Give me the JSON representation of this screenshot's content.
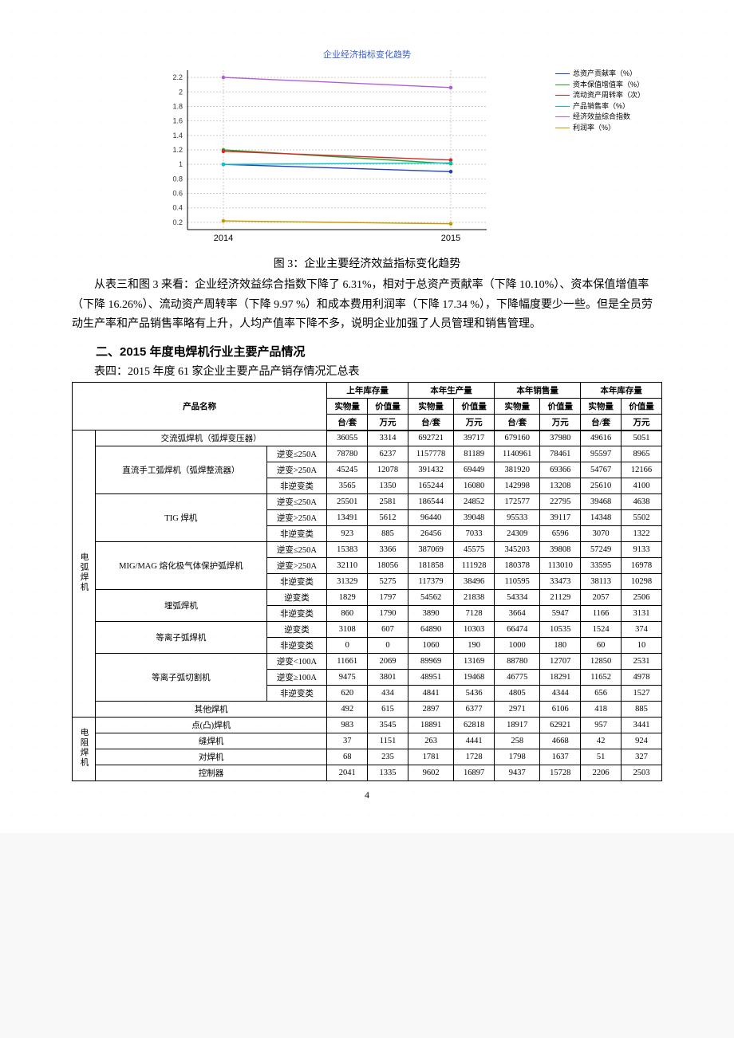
{
  "chart": {
    "title": "企业经济指标变化趋势",
    "title_color": "#3a5fcd",
    "title_fontsize": 11,
    "x_labels": [
      "2014",
      "2015"
    ],
    "y_ticks": [
      0.2,
      0.4,
      0.6,
      0.8,
      1,
      1.2,
      1.4,
      1.6,
      1.8,
      2,
      2.2
    ],
    "ylim": [
      0.1,
      2.3
    ],
    "grid_color": "#d6c9c0",
    "grid_dash": "2,2",
    "axis_color": "#000000",
    "background": "#ffffff",
    "series": [
      {
        "label": "总资产贡献率（%）",
        "color": "#1f3fbf",
        "values": [
          1.0,
          0.9
        ]
      },
      {
        "label": "资本保值增值率（%）",
        "color": "#2aa02a",
        "values": [
          1.2,
          1.01
        ]
      },
      {
        "label": "流动资产周转率（次）",
        "color": "#d62728",
        "values": [
          1.18,
          1.06
        ]
      },
      {
        "label": "产品销售率（%）",
        "color": "#00c6c6",
        "values": [
          1.0,
          1.02
        ]
      },
      {
        "label": "经济效益综合指数",
        "color": "#b060d6",
        "values": [
          2.2,
          2.06
        ]
      },
      {
        "label": "利润率（%）",
        "color": "#c49a00",
        "values": [
          0.22,
          0.18
        ]
      }
    ],
    "legend_fontsize": 9
  },
  "caption": "图 3：企业主要经济效益指标变化趋势",
  "paragraph": "从表三和图 3 来看：企业经济效益综合指数下降了 6.31%，相对于总资产贡献率（下降 10.10%）、资本保值增值率（下降 16.26%）、流动资产周转率（下降 9.97 %）和成本费用利润率（下降 17.34 %），下降幅度要少一些。但是全员劳动生产率和产品销售率略有上升，人均产值率下降不多，说明企业加强了人员管理和销售管理。",
  "section_heading": "二、2015 年度电焊机行业主要产品情况",
  "table_caption": "表四：2015 年度 61 家企业主要产品产销存情况汇总表",
  "table": {
    "group_headers": [
      "上年库存量",
      "本年生产量",
      "本年销售量",
      "本年库存量"
    ],
    "sub_headers": [
      "实物量",
      "价值量"
    ],
    "unit_headers": [
      "台/套",
      "万元"
    ],
    "product_header": "产品名称",
    "main_groups": [
      {
        "label": "电弧焊机",
        "rowspan": 17
      },
      {
        "label": "电阻焊机",
        "rowspan": 4
      }
    ],
    "rows": [
      {
        "g": 0,
        "name": [
          "交流弧焊机（弧焊变压器）"
        ],
        "colspan": 2,
        "d": [
          36055,
          3314,
          692721,
          39717,
          679160,
          37980,
          49616,
          5051
        ]
      },
      {
        "g": 0,
        "name": [
          "直流手工弧焊机（弧焊整流器）",
          "逆变≤250A"
        ],
        "rowspan": 3,
        "d": [
          78780,
          6237,
          1157778,
          81189,
          1140961,
          78461,
          95597,
          8965
        ]
      },
      {
        "g": 0,
        "name": [
          null,
          "逆变>250A"
        ],
        "d": [
          45245,
          12078,
          391432,
          69449,
          381920,
          69366,
          54767,
          12166
        ]
      },
      {
        "g": 0,
        "name": [
          null,
          "非逆变类"
        ],
        "d": [
          3565,
          1350,
          165244,
          16080,
          142998,
          13208,
          25610,
          4100
        ]
      },
      {
        "g": 0,
        "name": [
          "TIG 焊机",
          "逆变≤250A"
        ],
        "rowspan": 3,
        "d": [
          25501,
          2581,
          186544,
          24852,
          172577,
          22795,
          39468,
          4638
        ]
      },
      {
        "g": 0,
        "name": [
          null,
          "逆变>250A"
        ],
        "d": [
          13491,
          5612,
          96440,
          39048,
          95533,
          39117,
          14348,
          5502
        ]
      },
      {
        "g": 0,
        "name": [
          null,
          "非逆变类"
        ],
        "d": [
          923,
          885,
          26456,
          7033,
          24309,
          6596,
          3070,
          1322
        ]
      },
      {
        "g": 0,
        "name": [
          "MIG/MAG 熔化极气体保护弧焊机",
          "逆变≤250A"
        ],
        "rowspan": 3,
        "d": [
          15383,
          3366,
          387069,
          45575,
          345203,
          39808,
          57249,
          9133
        ]
      },
      {
        "g": 0,
        "name": [
          null,
          "逆变>250A"
        ],
        "d": [
          32110,
          18056,
          181858,
          111928,
          180378,
          113010,
          33595,
          16978
        ]
      },
      {
        "g": 0,
        "name": [
          null,
          "非逆变类"
        ],
        "d": [
          31329,
          5275,
          117379,
          38496,
          110595,
          33473,
          38113,
          10298
        ]
      },
      {
        "g": 0,
        "name": [
          "埋弧焊机",
          "逆变类"
        ],
        "rowspan": 2,
        "d": [
          1829,
          1797,
          54562,
          21838,
          54334,
          21129,
          2057,
          2506
        ]
      },
      {
        "g": 0,
        "name": [
          null,
          "非逆变类"
        ],
        "d": [
          860,
          1790,
          3890,
          7128,
          3664,
          5947,
          1166,
          3131
        ]
      },
      {
        "g": 0,
        "name": [
          "等离子弧焊机",
          "逆变类"
        ],
        "rowspan": 2,
        "d": [
          3108,
          607,
          64890,
          10303,
          66474,
          10535,
          1524,
          374
        ]
      },
      {
        "g": 0,
        "name": [
          null,
          "非逆变类"
        ],
        "d": [
          0,
          0,
          1060,
          190,
          1000,
          180,
          60,
          10
        ]
      },
      {
        "g": 0,
        "name": [
          "等离子弧切割机",
          "逆变<100A"
        ],
        "rowspan": 3,
        "d": [
          11661,
          2069,
          89969,
          13169,
          88780,
          12707,
          12850,
          2531
        ]
      },
      {
        "g": 0,
        "name": [
          null,
          "逆变≥100A"
        ],
        "d": [
          9475,
          3801,
          48951,
          19468,
          46775,
          18291,
          11652,
          4978
        ]
      },
      {
        "g": 0,
        "name": [
          null,
          "非逆变类"
        ],
        "d": [
          620,
          434,
          4841,
          5436,
          4805,
          4344,
          656,
          1527
        ]
      },
      {
        "g": 0,
        "name": [
          "其他焊机"
        ],
        "colspan": 2,
        "d": [
          492,
          615,
          2897,
          6377,
          2971,
          6106,
          418,
          885
        ]
      },
      {
        "g": 1,
        "name": [
          "点(凸)焊机"
        ],
        "colspan": 2,
        "d": [
          983,
          3545,
          18891,
          62818,
          18917,
          62921,
          957,
          3441
        ]
      },
      {
        "g": 1,
        "name": [
          "缝焊机"
        ],
        "colspan": 2,
        "d": [
          37,
          1151,
          263,
          4441,
          258,
          4668,
          42,
          924
        ]
      },
      {
        "g": 1,
        "name": [
          "对焊机"
        ],
        "colspan": 2,
        "d": [
          68,
          235,
          1781,
          1728,
          1798,
          1637,
          51,
          327
        ]
      },
      {
        "g": 1,
        "name": [
          "控制器"
        ],
        "colspan": 2,
        "d": [
          2041,
          1335,
          9602,
          16897,
          9437,
          15728,
          2206,
          2503
        ]
      }
    ]
  },
  "page_number": "4"
}
